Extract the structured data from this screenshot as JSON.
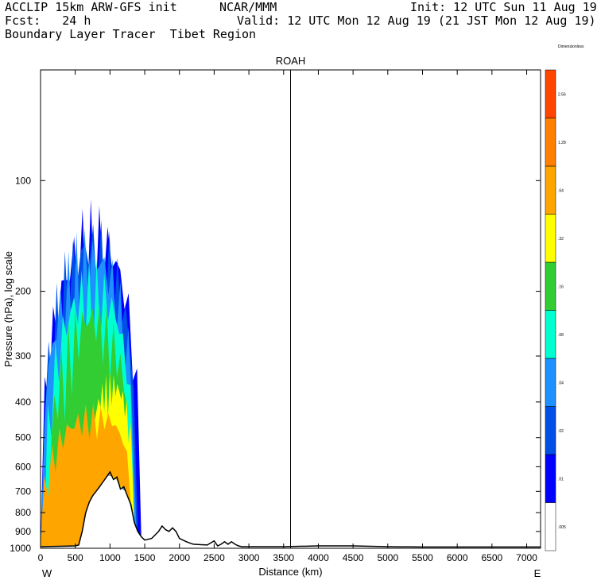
{
  "header": {
    "line1_left": "ACCLIP 15km ARW-GFS init",
    "line1_mid": "NCAR/MMM",
    "line1_right": "Init: 12 UTC Sun 11 Aug 19",
    "line2_left": "Fcst:   24 h",
    "line2_right": "Valid: 12 UTC Mon 12 Aug 19 (21 JST Mon 12 Aug 19)",
    "line3_left": "Boundary Layer Tracer  Tibet Region"
  },
  "chart_data": {
    "type": "area",
    "title": "ROAH",
    "xlabel": "Distance (km)",
    "ylabel": "Pressure (hPa), log scale",
    "xlim": [
      0,
      7200
    ],
    "ylim": [
      1000,
      50
    ],
    "y_scale": "log",
    "x_ticks": [
      0,
      500,
      1000,
      1500,
      2000,
      2500,
      3000,
      3500,
      4000,
      4500,
      5000,
      5500,
      6000,
      6500,
      7000
    ],
    "y_ticks": [
      100,
      200,
      300,
      400,
      500,
      600,
      700,
      800,
      900,
      1000
    ],
    "x_end_labels": {
      "left": "W",
      "right": "E"
    },
    "vertical_marker_km": 3600,
    "colorbar": {
      "levels": [
        ".005",
        ".01",
        ".02",
        ".04",
        ".08",
        ".16",
        ".32",
        ".64",
        "1.28",
        "2.56",
        "Dimensionless"
      ],
      "colors": [
        "#ffffff",
        "#0000ff",
        "#0050e6",
        "#1e90ff",
        "#00ffd0",
        "#32cd32",
        "#ffff00",
        "#ffa500",
        "#ff7f00",
        "#ff4500"
      ]
    },
    "terrain": {
      "x": [
        0,
        200,
        400,
        500,
        550,
        600,
        650,
        700,
        750,
        800,
        850,
        900,
        950,
        1000,
        1050,
        1100,
        1150,
        1200,
        1250,
        1300,
        1350,
        1400,
        1450,
        1500,
        1600,
        1700,
        1750,
        1800,
        1850,
        1900,
        1950,
        2000,
        2100,
        2200,
        2400,
        2500,
        2550,
        2600,
        2650,
        2700,
        2750,
        2800,
        2850,
        2900,
        3000,
        3500,
        4000,
        4500,
        5000,
        5500,
        6000,
        6500,
        7200
      ],
      "pressure": [
        990,
        988,
        986,
        985,
        980,
        900,
        800,
        750,
        720,
        700,
        680,
        660,
        640,
        620,
        650,
        640,
        690,
        680,
        720,
        760,
        850,
        900,
        930,
        950,
        940,
        900,
        870,
        890,
        900,
        880,
        900,
        940,
        960,
        975,
        980,
        955,
        985,
        975,
        960,
        975,
        960,
        975,
        985,
        990,
        990,
        990,
        985,
        985,
        990,
        992,
        992,
        992,
        992
      ]
    },
    "tracer_plumes": [
      {
        "level": ".005-.01",
        "color": "#0000ff",
        "x_range_km": [
          0,
          1450
        ],
        "top_hPa": 112
      },
      {
        "level": ".01-.02",
        "color": "#0050e6",
        "x_range_km": [
          0,
          1400
        ],
        "top_hPa": 120
      },
      {
        "level": ".02-.04",
        "color": "#1e90ff",
        "x_range_km": [
          0,
          1380
        ],
        "top_hPa": 130
      },
      {
        "level": ".04-.08",
        "color": "#00ffd0",
        "x_range_km": [
          50,
          1350
        ],
        "top_hPa": 160
      },
      {
        "level": ".08-.16",
        "color": "#32cd32",
        "x_range_km": [
          100,
          1300
        ],
        "top_hPa": 200
      },
      {
        "level": ".32-.64",
        "color": "#ffff00",
        "x_range_km": [
          700,
          1350
        ],
        "top_hPa": 330
      },
      {
        "level": ".64-1.28",
        "color": "#ffa500",
        "x_range_km": [
          0,
          1300
        ],
        "top_hPa": 400
      }
    ]
  }
}
